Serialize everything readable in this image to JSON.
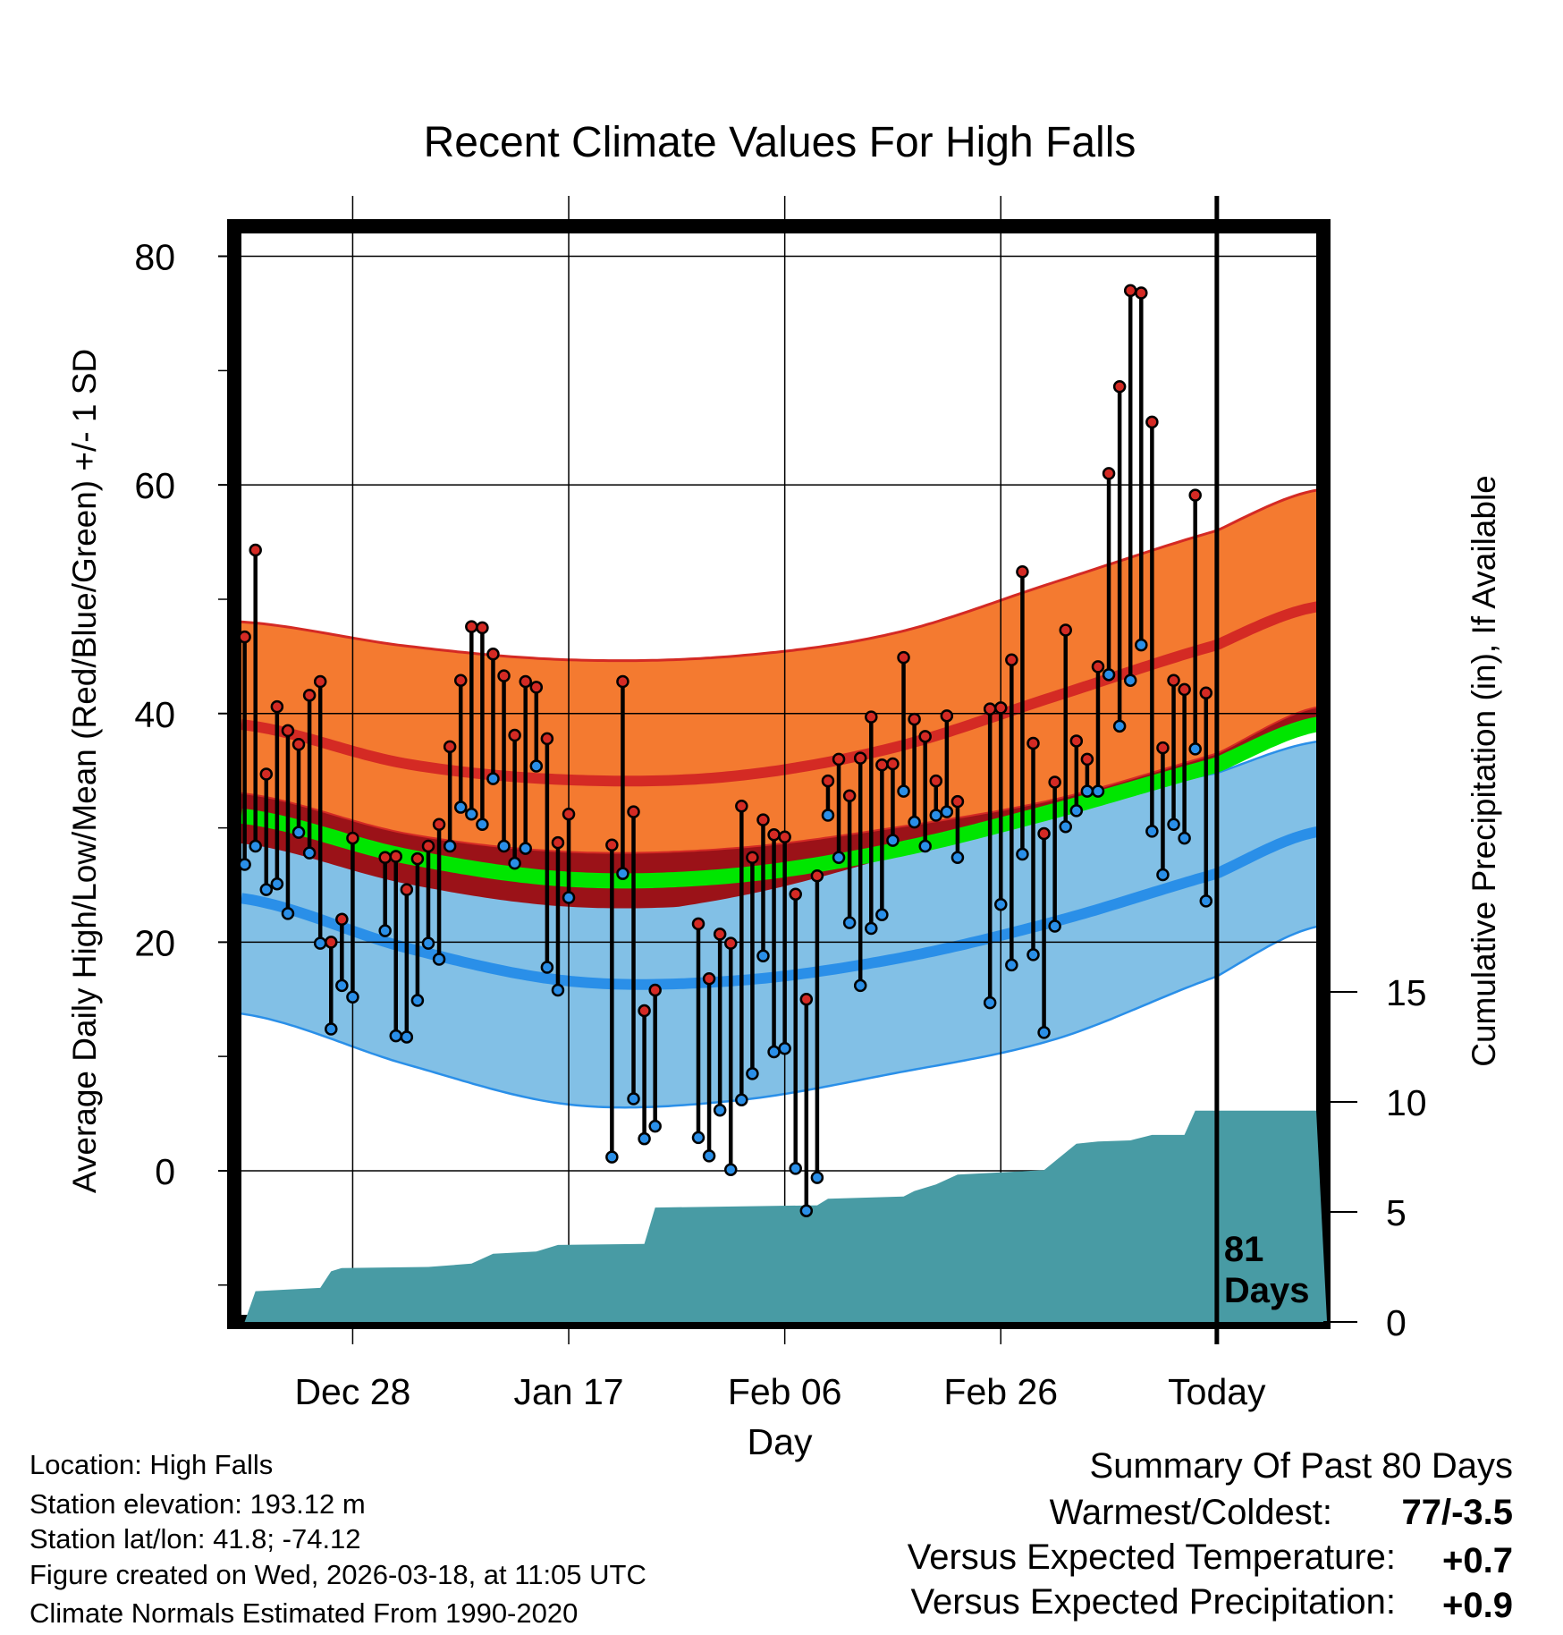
{
  "chart_data": {
    "type": "line",
    "title": "Recent Climate Values For High Falls",
    "xlabel": "Day",
    "ylabel": "Average Daily High/Low/Mean (Red/Blue/Green) +/- 1 SD",
    "ylabel_right": "Cumulative Precipitation (in), If Available",
    "x_ticks": [
      {
        "day": 0,
        "label": "Dec 28"
      },
      {
        "day": 20,
        "label": "Jan 17"
      },
      {
        "day": 40,
        "label": "Feb 06"
      },
      {
        "day": 60,
        "label": "Feb 26"
      },
      {
        "day": 80,
        "label": "Today"
      }
    ],
    "xlim": [
      -10.3,
      89.2
    ],
    "ylim": [
      -12.6,
      82
    ],
    "y_ticks": [
      0,
      20,
      40,
      60,
      80
    ],
    "y_minor_ticks": [
      -10,
      10,
      30,
      50,
      70
    ],
    "y2_ticks": [
      0,
      5,
      10,
      15
    ],
    "y2lim": [
      0,
      48.9
    ],
    "grid": true,
    "today_label": "81\nDays",
    "today_label_lines": [
      "81",
      "Days"
    ],
    "colors": {
      "high": "#d42a24",
      "low": "#2a8fe8",
      "mean": "#00e600",
      "high_band": "#f47a30",
      "low_band": "#82c0e6",
      "overlap": "#9b1218",
      "precip": "#489ba4"
    },
    "observed": {
      "days": [
        -10,
        -9,
        -8,
        -7,
        -6,
        -5,
        -4,
        -3,
        -2,
        -1,
        0,
        3,
        4,
        5,
        6,
        7,
        8,
        9,
        10,
        11,
        12,
        13,
        14,
        15,
        16,
        17,
        18,
        19,
        20,
        24,
        25,
        26,
        27,
        28,
        32,
        33,
        34,
        35,
        36,
        37,
        38,
        39,
        40,
        41,
        42,
        43,
        44,
        45,
        46,
        47,
        48,
        49,
        50,
        51,
        52,
        53,
        54,
        55,
        56,
        59,
        60,
        61,
        62,
        63,
        64,
        65,
        66,
        67,
        68,
        69,
        70,
        71,
        72,
        73,
        74,
        75,
        76,
        77,
        78,
        79
      ],
      "high": [
        46.7,
        54.3,
        34.7,
        40.6,
        38.5,
        37.3,
        41.6,
        42.8,
        20.0,
        22.0,
        29.1,
        27.4,
        27.5,
        24.6,
        27.3,
        28.4,
        30.3,
        37.1,
        42.9,
        47.6,
        47.5,
        45.2,
        43.3,
        38.1,
        42.8,
        42.3,
        37.8,
        28.7,
        31.2,
        28.5,
        42.8,
        31.4,
        14.0,
        15.8,
        21.6,
        16.8,
        20.7,
        19.9,
        31.9,
        27.4,
        30.7,
        29.4,
        29.2,
        24.2,
        15.0,
        25.8,
        34.1,
        36.0,
        32.8,
        36.1,
        39.7,
        35.5,
        35.6,
        44.9,
        39.5,
        38.0,
        34.1,
        39.8,
        32.3,
        40.4,
        40.5,
        44.7,
        52.4,
        37.4,
        29.5,
        34.0,
        47.3,
        37.6,
        36.0,
        44.1,
        61.0,
        68.6,
        77.0,
        76.8,
        65.5,
        37.0,
        42.9,
        42.1,
        59.1,
        41.8
      ],
      "low": [
        26.8,
        28.4,
        24.6,
        25.1,
        22.5,
        29.6,
        27.8,
        19.9,
        12.4,
        16.2,
        15.2,
        21.0,
        11.8,
        11.7,
        14.9,
        19.9,
        18.5,
        28.4,
        31.8,
        31.2,
        30.3,
        34.3,
        28.4,
        26.9,
        28.2,
        35.4,
        17.8,
        15.8,
        23.9,
        1.2,
        26.0,
        6.3,
        2.8,
        3.9,
        2.9,
        1.3,
        5.3,
        0.1,
        6.2,
        8.5,
        18.8,
        10.4,
        10.7,
        0.2,
        -3.5,
        -0.6,
        31.1,
        27.4,
        21.7,
        16.2,
        21.2,
        22.4,
        28.9,
        33.2,
        30.5,
        28.4,
        31.1,
        31.4,
        27.4,
        14.7,
        23.3,
        18.0,
        27.7,
        18.9,
        12.1,
        21.4,
        30.1,
        31.5,
        33.2,
        33.2,
        43.4,
        38.9,
        42.9,
        46.0,
        29.7,
        25.9,
        30.3,
        29.1,
        36.9,
        23.6
      ]
    },
    "normals": {
      "days": [
        -10,
        5,
        20,
        35,
        50,
        65,
        80,
        89
      ],
      "high_plus_sd": [
        48,
        45.9,
        44.7,
        45,
        47,
        51.5,
        56,
        59.5
      ],
      "high_mean": [
        39,
        35.6,
        34.2,
        34.5,
        37,
        41.5,
        46,
        49.3
      ],
      "high_minus_sd": [
        33,
        29.5,
        27.9,
        28.2,
        30,
        32.5,
        36.5,
        40.5
      ],
      "mean": [
        31,
        27.5,
        25.5,
        25.8,
        28,
        31.5,
        35.5,
        39
      ],
      "low_plus_sd": [
        33.3,
        30.0,
        28,
        27.8,
        29.5,
        31.8,
        34.8,
        37.5
      ],
      "low_mean": [
        23.8,
        19.5,
        16.6,
        16.6,
        18.5,
        21.8,
        26,
        29.6
      ],
      "low_minus_sd": [
        13.7,
        9.3,
        5.8,
        6.1,
        8.5,
        11.5,
        17,
        21.3
      ]
    },
    "precip_cumulative": [
      [
        -10,
        0
      ],
      [
        -9,
        1.4
      ],
      [
        -5,
        1.5
      ],
      [
        -3,
        1.55
      ],
      [
        -2,
        2.3
      ],
      [
        -1,
        2.45
      ],
      [
        7,
        2.5
      ],
      [
        11,
        2.65
      ],
      [
        13,
        3.1
      ],
      [
        17,
        3.2
      ],
      [
        19,
        3.5
      ],
      [
        27,
        3.55
      ],
      [
        28,
        5.2
      ],
      [
        43,
        5.3
      ],
      [
        44,
        5.6
      ],
      [
        51,
        5.7
      ],
      [
        52,
        5.95
      ],
      [
        54,
        6.25
      ],
      [
        56,
        6.7
      ],
      [
        60,
        6.8
      ],
      [
        64,
        6.9
      ],
      [
        65,
        7.3
      ],
      [
        67,
        8.1
      ],
      [
        69,
        8.2
      ],
      [
        72,
        8.25
      ],
      [
        74,
        8.5
      ],
      [
        77,
        8.5
      ],
      [
        78,
        9.6
      ],
      [
        89.2,
        9.6
      ]
    ]
  },
  "info": {
    "location": "Location: High Falls",
    "elevation": "Station elevation: 193.12 m",
    "latlon": "Station lat/lon: 41.8; -74.12",
    "created": "Figure created on Wed, 2026-03-18, at 11:05 UTC",
    "normals": "Climate Normals Estimated From 1990-2020"
  },
  "summary": {
    "title": "Summary Of Past 80 Days",
    "warm_cold_label": "Warmest/Coldest:",
    "warm_cold_value": "77/-3.5",
    "temp_label": "Versus Expected Temperature:",
    "temp_value": "+0.7",
    "temp_color": "#d42a24",
    "precip_label": "Versus Expected Precipitation:",
    "precip_value": "+0.9",
    "precip_color": "#22dd22"
  }
}
